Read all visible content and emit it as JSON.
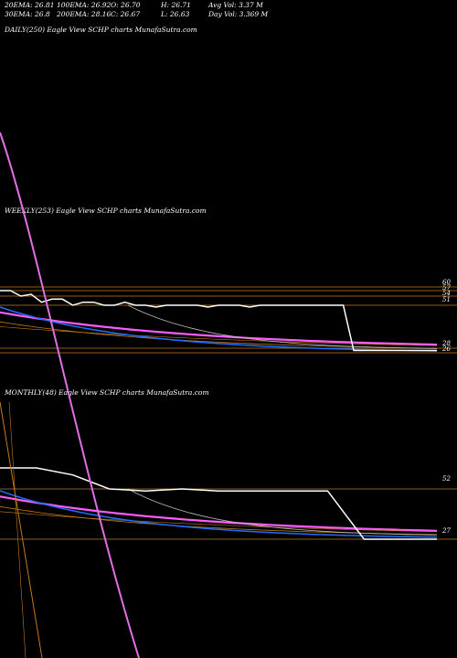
{
  "header": {
    "ema20": "20EMA: 26.81",
    "ema100": "100EMA: 26.92",
    "open": "O: 26.70",
    "high": "H: 26.71",
    "avg_vol": "Avg Vol: 3.37 M",
    "ema30": "30EMA: 26.8",
    "ema200": "200EMA: 28.16",
    "close": "C: 26.67",
    "low": "L: 26.63",
    "day_vol": "Day Vol: 3.369 M"
  },
  "panels": {
    "daily": {
      "label": "DAILY(250) Eagle  View  SCHP charts MunafaSutra.com"
    },
    "weekly": {
      "label": "WEEKLY(253) Eagle  View  SCHP charts MunafaSutra.com"
    },
    "monthly": {
      "label": "MONTHLY(48) Eagle  View  SCHP charts MunafaSutra.com"
    }
  },
  "colors": {
    "background": "#000000",
    "price": "#ffffff",
    "ema_short": "#1e6fff",
    "ema_mid": "#ff5cff",
    "ema_long": "#c47a1a",
    "ema_fast_gray": "#bbbbbb",
    "level_line": "#c47a1a",
    "steep_line": "#e070e0"
  },
  "chart_data": [
    {
      "type": "line",
      "name": "weekly",
      "ticks": [
        "60",
        "57",
        "54",
        "51",
        "28",
        "26"
      ],
      "levels": [
        60,
        57,
        54,
        51,
        28,
        26
      ],
      "x": [
        0,
        6,
        12,
        18,
        24,
        30,
        36,
        42,
        48,
        54,
        60,
        66,
        72,
        78,
        84,
        90,
        96,
        102,
        108,
        114,
        120,
        126,
        132,
        138,
        144,
        150,
        156,
        162,
        168,
        174,
        180,
        186,
        192,
        198,
        204,
        210,
        216,
        222,
        228,
        234,
        240,
        246,
        252
      ],
      "series": [
        {
          "values": [
            57,
            57,
            54,
            55,
            52,
            53,
            53,
            51,
            52,
            52,
            51,
            51,
            52,
            51,
            51,
            50,
            51,
            51,
            51,
            51,
            50,
            51,
            51,
            51,
            50,
            51,
            51,
            51,
            51,
            51,
            51,
            51,
            51,
            51,
            27,
            27,
            27,
            27,
            27,
            27,
            27,
            27,
            27
          ]
        }
      ]
    },
    {
      "type": "line",
      "name": "monthly",
      "ticks": [
        "52",
        "27"
      ],
      "levels": [
        52,
        27
      ],
      "x": [
        0,
        4,
        8,
        12,
        16,
        20,
        24,
        28,
        32,
        36,
        40,
        44,
        48
      ],
      "series": [
        {
          "values": [
            58,
            58,
            56,
            52,
            51,
            52,
            51,
            51,
            51,
            51,
            27,
            27,
            27
          ]
        }
      ]
    }
  ]
}
